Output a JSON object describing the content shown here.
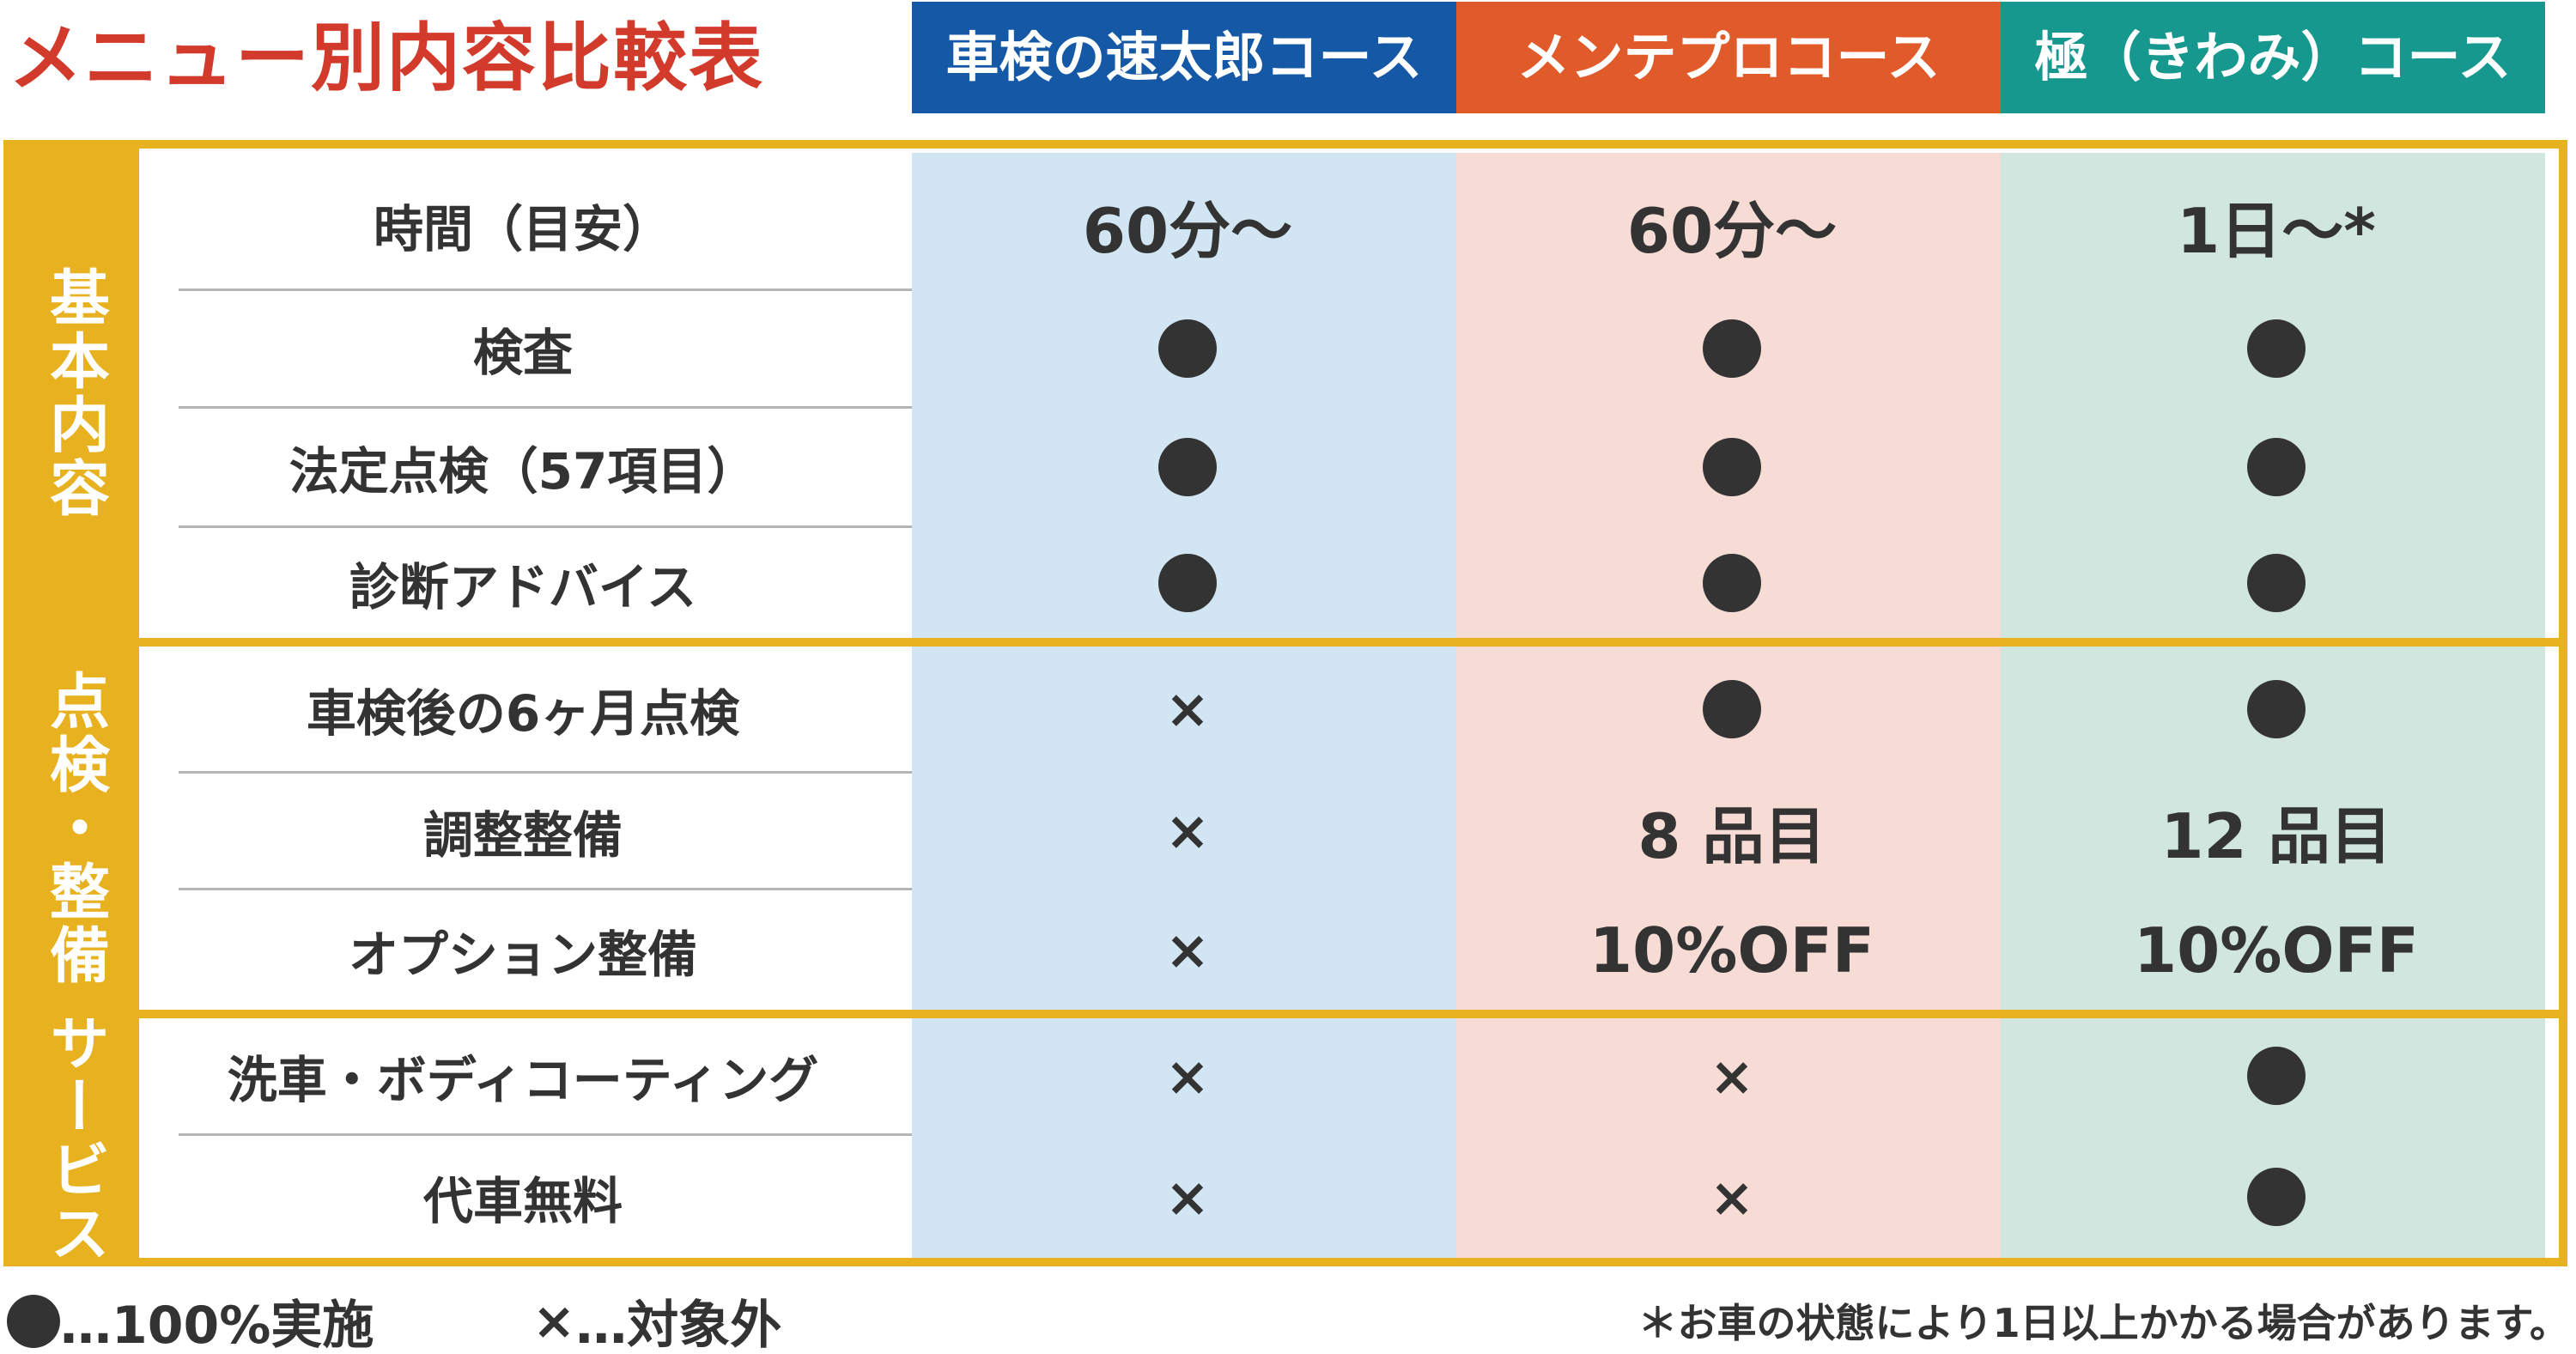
{
  "title": "メニュー別内容比較表",
  "columns": [
    {
      "label": "車検の速太郎コース",
      "header_color": "#1458a6",
      "bg_color": "#d1e6f2"
    },
    {
      "label": "メンテプロコース",
      "header_color": "#e05a2a",
      "bg_color": "#f7dcd6"
    },
    {
      "label": "極（きわみ）コース",
      "header_color": "#17988f",
      "bg_color": "#d0e6de"
    }
  ],
  "categories": [
    {
      "label": "基本内容"
    },
    {
      "label": "点検・整備"
    },
    {
      "label": "サービス"
    }
  ],
  "rows": [
    {
      "label": "時間（目安）",
      "values": [
        "60分〜",
        "60分〜",
        "1日〜*"
      ]
    },
    {
      "label": "検査",
      "values": [
        "●",
        "●",
        "●"
      ]
    },
    {
      "label": "法定点検（57項目）",
      "values": [
        "●",
        "●",
        "●"
      ]
    },
    {
      "label": "診断アドバイス",
      "values": [
        "●",
        "●",
        "●"
      ]
    },
    {
      "label": "車検後の6ヶ月点検",
      "values": [
        "×",
        "●",
        "●"
      ]
    },
    {
      "label": "調整整備",
      "values": [
        "×",
        "8 品目",
        "12 品目"
      ]
    },
    {
      "label": "オプション整備",
      "values": [
        "×",
        "10%OFF",
        "10%OFF"
      ]
    },
    {
      "label": "洗車・ボディコーティング",
      "values": [
        "×",
        "×",
        "●"
      ]
    },
    {
      "label": "代車無料",
      "values": [
        "×",
        "×",
        "●"
      ]
    }
  ],
  "legend": {
    "dot_text": "…100%実施",
    "cross_symbol": "×",
    "cross_text": "…対象外"
  },
  "footnote": "＊お車の状態により1日以上かかる場合があります。",
  "colors": {
    "accent": "#e8b11f",
    "title": "#d23a2b",
    "mark": "#333333"
  }
}
